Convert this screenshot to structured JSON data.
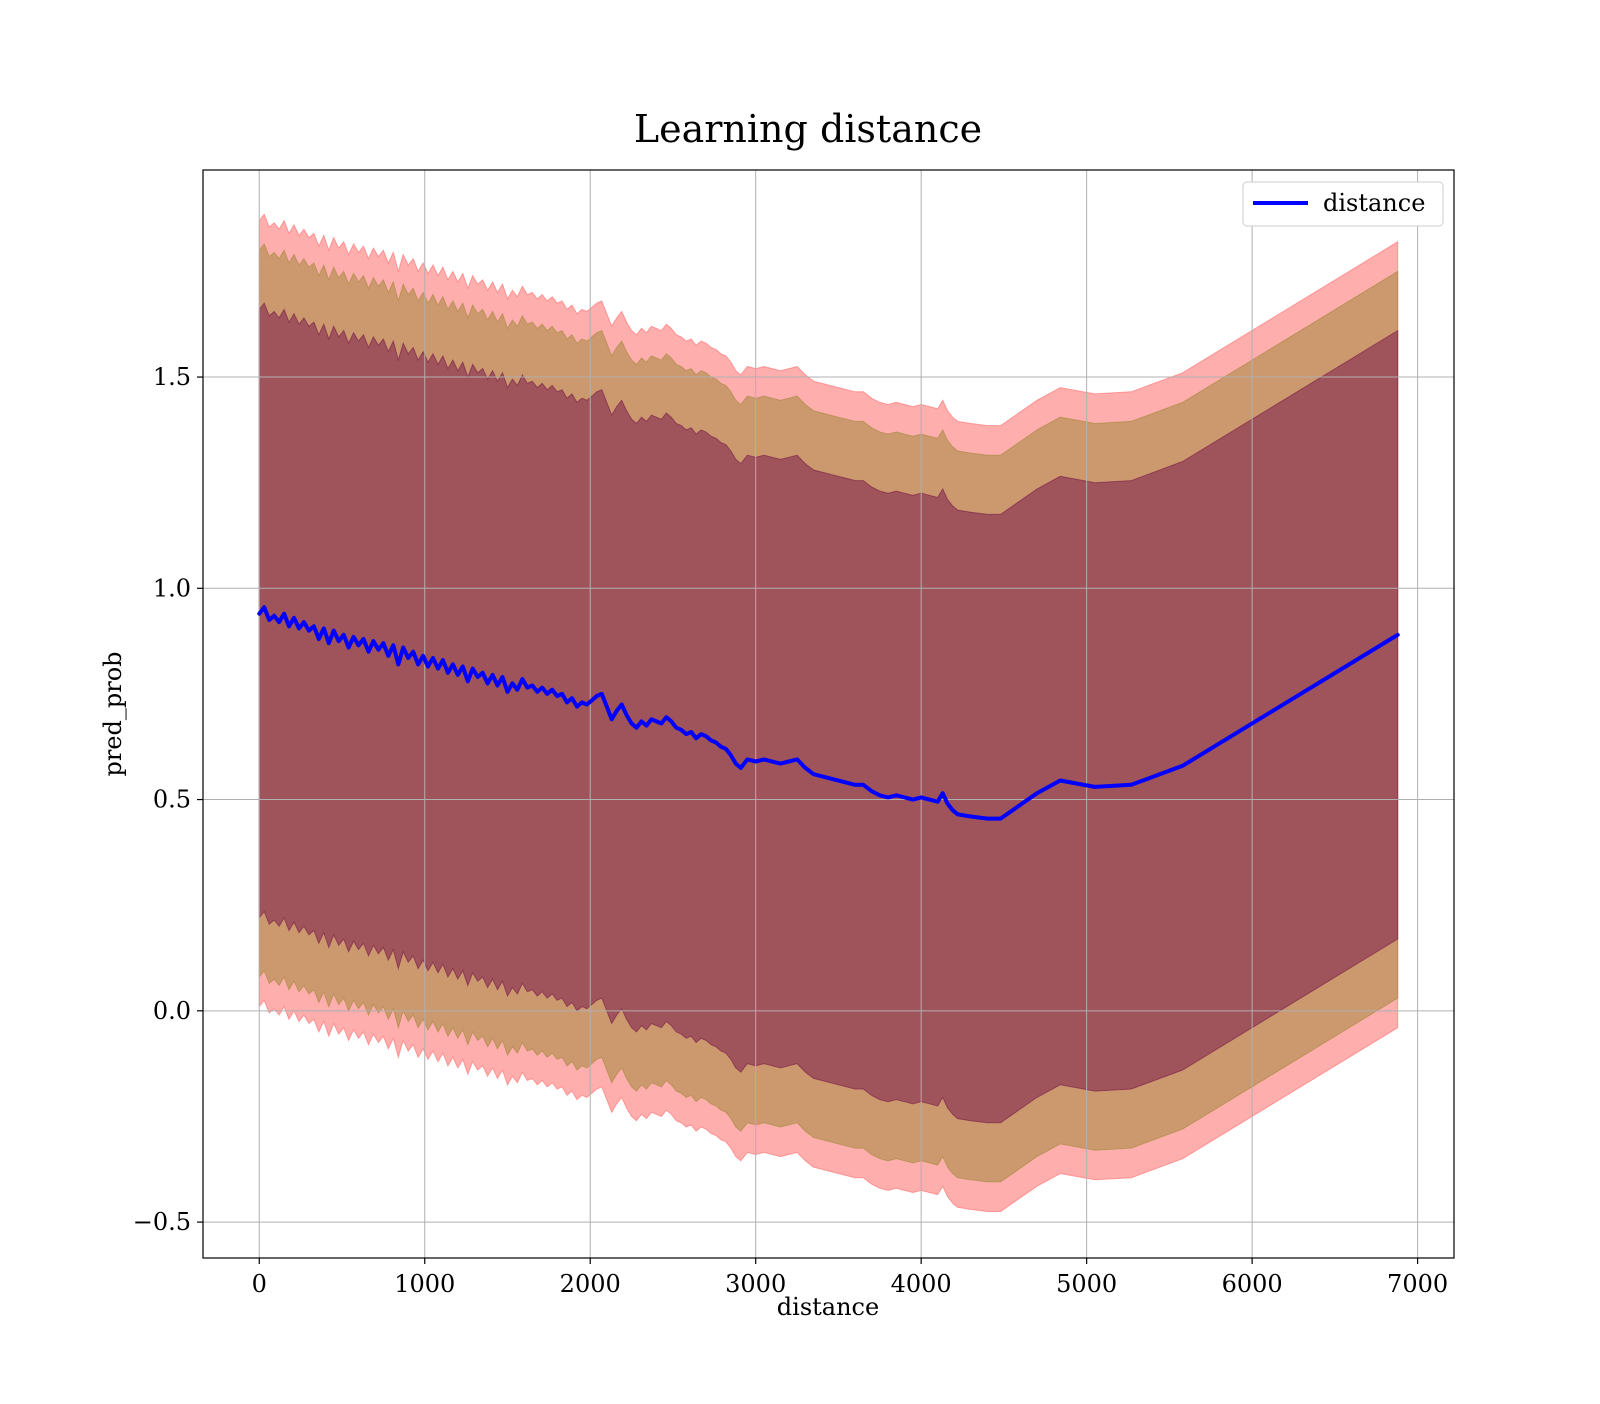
{
  "chart_data": {
    "type": "line",
    "title": "Learning distance",
    "xlabel": "distance",
    "ylabel": "pred_prob",
    "xlim": [
      -340,
      7220
    ],
    "ylim": [
      -0.585,
      1.99
    ],
    "xticks": [
      0,
      1000,
      2000,
      3000,
      4000,
      5000,
      6000,
      7000
    ],
    "yticks": [
      -0.5,
      0.0,
      0.5,
      1.0,
      1.5
    ],
    "ytick_labels": [
      "−0.5",
      "0.0",
      "0.5",
      "1.0",
      "1.5"
    ],
    "grid": true,
    "legend": {
      "placement": "top-right",
      "entries": [
        "distance"
      ]
    },
    "colors": {
      "line": "#0000ff",
      "outer_band": "#ff6b6b",
      "middle_band": "#a3893a",
      "inner_band": "#7a1a4a",
      "fill_body": "#a07078",
      "grid": "#b0b0b0"
    },
    "series": [
      {
        "name": "distance",
        "x": [
          0,
          30,
          60,
          90,
          120,
          150,
          180,
          210,
          240,
          270,
          300,
          330,
          360,
          390,
          420,
          450,
          480,
          510,
          540,
          570,
          600,
          630,
          660,
          690,
          720,
          750,
          780,
          810,
          840,
          870,
          900,
          930,
          960,
          990,
          1020,
          1050,
          1080,
          1110,
          1140,
          1170,
          1200,
          1230,
          1260,
          1290,
          1320,
          1350,
          1380,
          1410,
          1440,
          1470,
          1500,
          1530,
          1560,
          1590,
          1620,
          1650,
          1680,
          1710,
          1740,
          1770,
          1800,
          1830,
          1860,
          1890,
          1920,
          1950,
          1980,
          2010,
          2040,
          2070,
          2100,
          2130,
          2160,
          2190,
          2220,
          2250,
          2280,
          2310,
          2340,
          2370,
          2400,
          2430,
          2460,
          2490,
          2520,
          2550,
          2580,
          2610,
          2640,
          2670,
          2700,
          2730,
          2760,
          2790,
          2820,
          2850,
          2880,
          2910,
          2950,
          3000,
          3050,
          3100,
          3150,
          3200,
          3250,
          3300,
          3350,
          3400,
          3450,
          3500,
          3550,
          3600,
          3650,
          3700,
          3750,
          3800,
          3850,
          3900,
          3950,
          4000,
          4050,
          4100,
          4130,
          4160,
          4190,
          4220,
          4300,
          4400,
          4480,
          4700,
          4840,
          5050,
          5270,
          5580,
          6880
        ],
        "values": [
          0.94,
          0.955,
          0.925,
          0.935,
          0.92,
          0.94,
          0.91,
          0.93,
          0.905,
          0.92,
          0.9,
          0.91,
          0.88,
          0.905,
          0.87,
          0.9,
          0.875,
          0.89,
          0.86,
          0.885,
          0.865,
          0.88,
          0.85,
          0.875,
          0.855,
          0.87,
          0.84,
          0.865,
          0.82,
          0.86,
          0.835,
          0.85,
          0.82,
          0.84,
          0.815,
          0.835,
          0.81,
          0.83,
          0.8,
          0.82,
          0.795,
          0.815,
          0.78,
          0.81,
          0.79,
          0.8,
          0.775,
          0.795,
          0.77,
          0.79,
          0.755,
          0.775,
          0.76,
          0.785,
          0.765,
          0.77,
          0.755,
          0.765,
          0.75,
          0.76,
          0.745,
          0.75,
          0.73,
          0.74,
          0.72,
          0.73,
          0.725,
          0.735,
          0.745,
          0.75,
          0.72,
          0.69,
          0.71,
          0.725,
          0.7,
          0.68,
          0.67,
          0.685,
          0.675,
          0.69,
          0.685,
          0.68,
          0.695,
          0.685,
          0.67,
          0.665,
          0.655,
          0.66,
          0.645,
          0.655,
          0.65,
          0.64,
          0.635,
          0.625,
          0.62,
          0.605,
          0.585,
          0.575,
          0.595,
          0.59,
          0.595,
          0.59,
          0.585,
          0.59,
          0.595,
          0.575,
          0.56,
          0.555,
          0.55,
          0.545,
          0.54,
          0.535,
          0.535,
          0.52,
          0.51,
          0.505,
          0.51,
          0.505,
          0.5,
          0.505,
          0.5,
          0.495,
          0.515,
          0.49,
          0.475,
          0.465,
          0.46,
          0.455,
          0.455,
          0.515,
          0.545,
          0.53,
          0.535,
          0.58,
          0.89
        ]
      }
    ],
    "bands": [
      {
        "offset": 0.93,
        "color": "#ff6b6b"
      },
      {
        "offset": 0.86,
        "color": "#a3893a"
      },
      {
        "offset": 0.72,
        "color": "#7a1a4a"
      }
    ]
  }
}
